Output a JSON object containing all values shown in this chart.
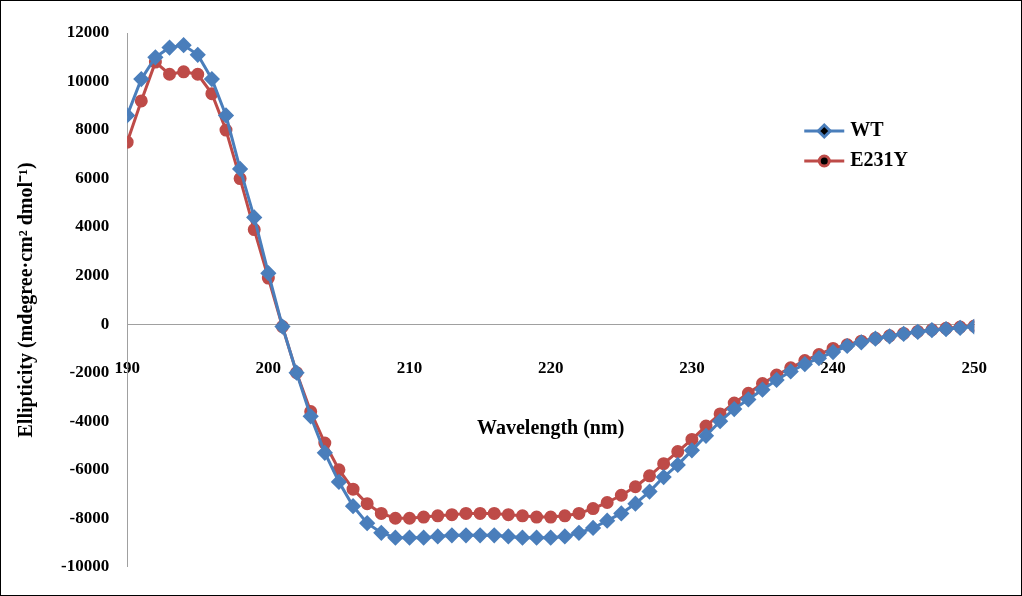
{
  "chart_data": {
    "type": "line",
    "xlabel": "Wavelength (nm)",
    "ylabel": "Ellipticity (mdegree·cm² dmol⁻¹)",
    "x": [
      190,
      191,
      192,
      193,
      194,
      195,
      196,
      197,
      198,
      199,
      200,
      201,
      202,
      203,
      204,
      205,
      206,
      207,
      208,
      209,
      210,
      211,
      212,
      213,
      214,
      215,
      216,
      217,
      218,
      219,
      220,
      221,
      222,
      223,
      224,
      225,
      226,
      227,
      228,
      229,
      230,
      231,
      232,
      233,
      234,
      235,
      236,
      237,
      238,
      239,
      240,
      241,
      242,
      243,
      244,
      245,
      246,
      247,
      248,
      249,
      250
    ],
    "xlim": [
      190,
      250
    ],
    "xticks": [
      190,
      200,
      210,
      220,
      230,
      240,
      250
    ],
    "ylim": [
      -10000,
      12000
    ],
    "yticks": [
      -10000,
      -8000,
      -6000,
      -4000,
      -2000,
      0,
      2000,
      4000,
      6000,
      8000,
      10000,
      12000
    ],
    "grid": false,
    "legend": "top right",
    "line_style": "solid",
    "series": [
      {
        "name": "WT",
        "color": "#4a7ebb",
        "marker": "diamond",
        "values": [
          8600,
          10100,
          11000,
          11400,
          11500,
          11100,
          10100,
          8600,
          6400,
          4400,
          2100,
          -100,
          -2000,
          -3800,
          -5300,
          -6500,
          -7500,
          -8200,
          -8600,
          -8800,
          -8800,
          -8800,
          -8750,
          -8700,
          -8700,
          -8700,
          -8700,
          -8750,
          -8800,
          -8800,
          -8800,
          -8750,
          -8600,
          -8400,
          -8100,
          -7800,
          -7400,
          -6900,
          -6300,
          -5800,
          -5200,
          -4600,
          -4000,
          -3500,
          -3100,
          -2700,
          -2300,
          -1950,
          -1650,
          -1400,
          -1150,
          -900,
          -750,
          -600,
          -500,
          -400,
          -320,
          -250,
          -200,
          -150,
          -100
        ]
      },
      {
        "name": "E231Y",
        "color": "#be4b48",
        "marker": "circle",
        "values": [
          7500,
          9200,
          10800,
          10300,
          10400,
          10300,
          9500,
          8000,
          6000,
          3900,
          1900,
          -100,
          -2000,
          -3600,
          -4900,
          -6000,
          -6800,
          -7400,
          -7800,
          -8000,
          -8000,
          -7950,
          -7900,
          -7850,
          -7800,
          -7800,
          -7800,
          -7850,
          -7900,
          -7950,
          -7950,
          -7900,
          -7800,
          -7600,
          -7350,
          -7050,
          -6700,
          -6250,
          -5750,
          -5250,
          -4750,
          -4200,
          -3700,
          -3250,
          -2850,
          -2450,
          -2100,
          -1800,
          -1500,
          -1250,
          -1000,
          -850,
          -700,
          -580,
          -480,
          -380,
          -300,
          -230,
          -170,
          -120,
          -80
        ]
      }
    ]
  }
}
